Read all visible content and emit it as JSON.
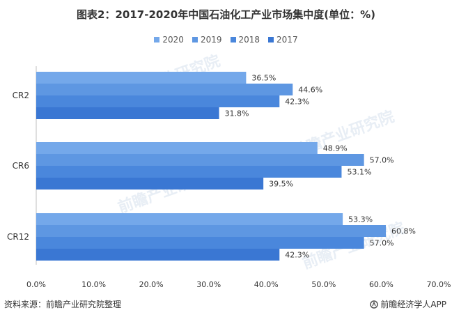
{
  "chart_data": {
    "type": "bar",
    "orientation": "horizontal",
    "title": "图表2：2017-2020年中国石油化工产业市场集中度(单位：%)",
    "categories": [
      "CR2",
      "CR6",
      "CR12"
    ],
    "series": [
      {
        "name": "2020",
        "color": "#74a8ea",
        "values": [
          36.5,
          48.9,
          53.3
        ],
        "labels": [
          "36.5%",
          "48.9%",
          "53.3%"
        ]
      },
      {
        "name": "2019",
        "color": "#5e97e2",
        "values": [
          44.6,
          57.0,
          60.8
        ],
        "labels": [
          "44.6%",
          "57.0%",
          "60.8%"
        ]
      },
      {
        "name": "2018",
        "color": "#4a87dc",
        "values": [
          42.3,
          53.1,
          57.0
        ],
        "labels": [
          "42.3%",
          "53.1%",
          "57.0%"
        ]
      },
      {
        "name": "2017",
        "color": "#3a77d3",
        "values": [
          31.8,
          39.5,
          42.3
        ],
        "labels": [
          "31.8%",
          "39.5%",
          "42.3%"
        ]
      }
    ],
    "xlim": [
      0,
      70
    ],
    "xticks": [
      "0.0%",
      "10.0%",
      "20.0%",
      "30.0%",
      "40.0%",
      "50.0%",
      "60.0%",
      "70.0%"
    ],
    "grid": false,
    "legend_position": "top"
  },
  "footer": {
    "source": "资料来源：前瞻产业研究院整理",
    "brand": "前瞻经济学人APP"
  },
  "watermark": "前瞻产业研究院"
}
